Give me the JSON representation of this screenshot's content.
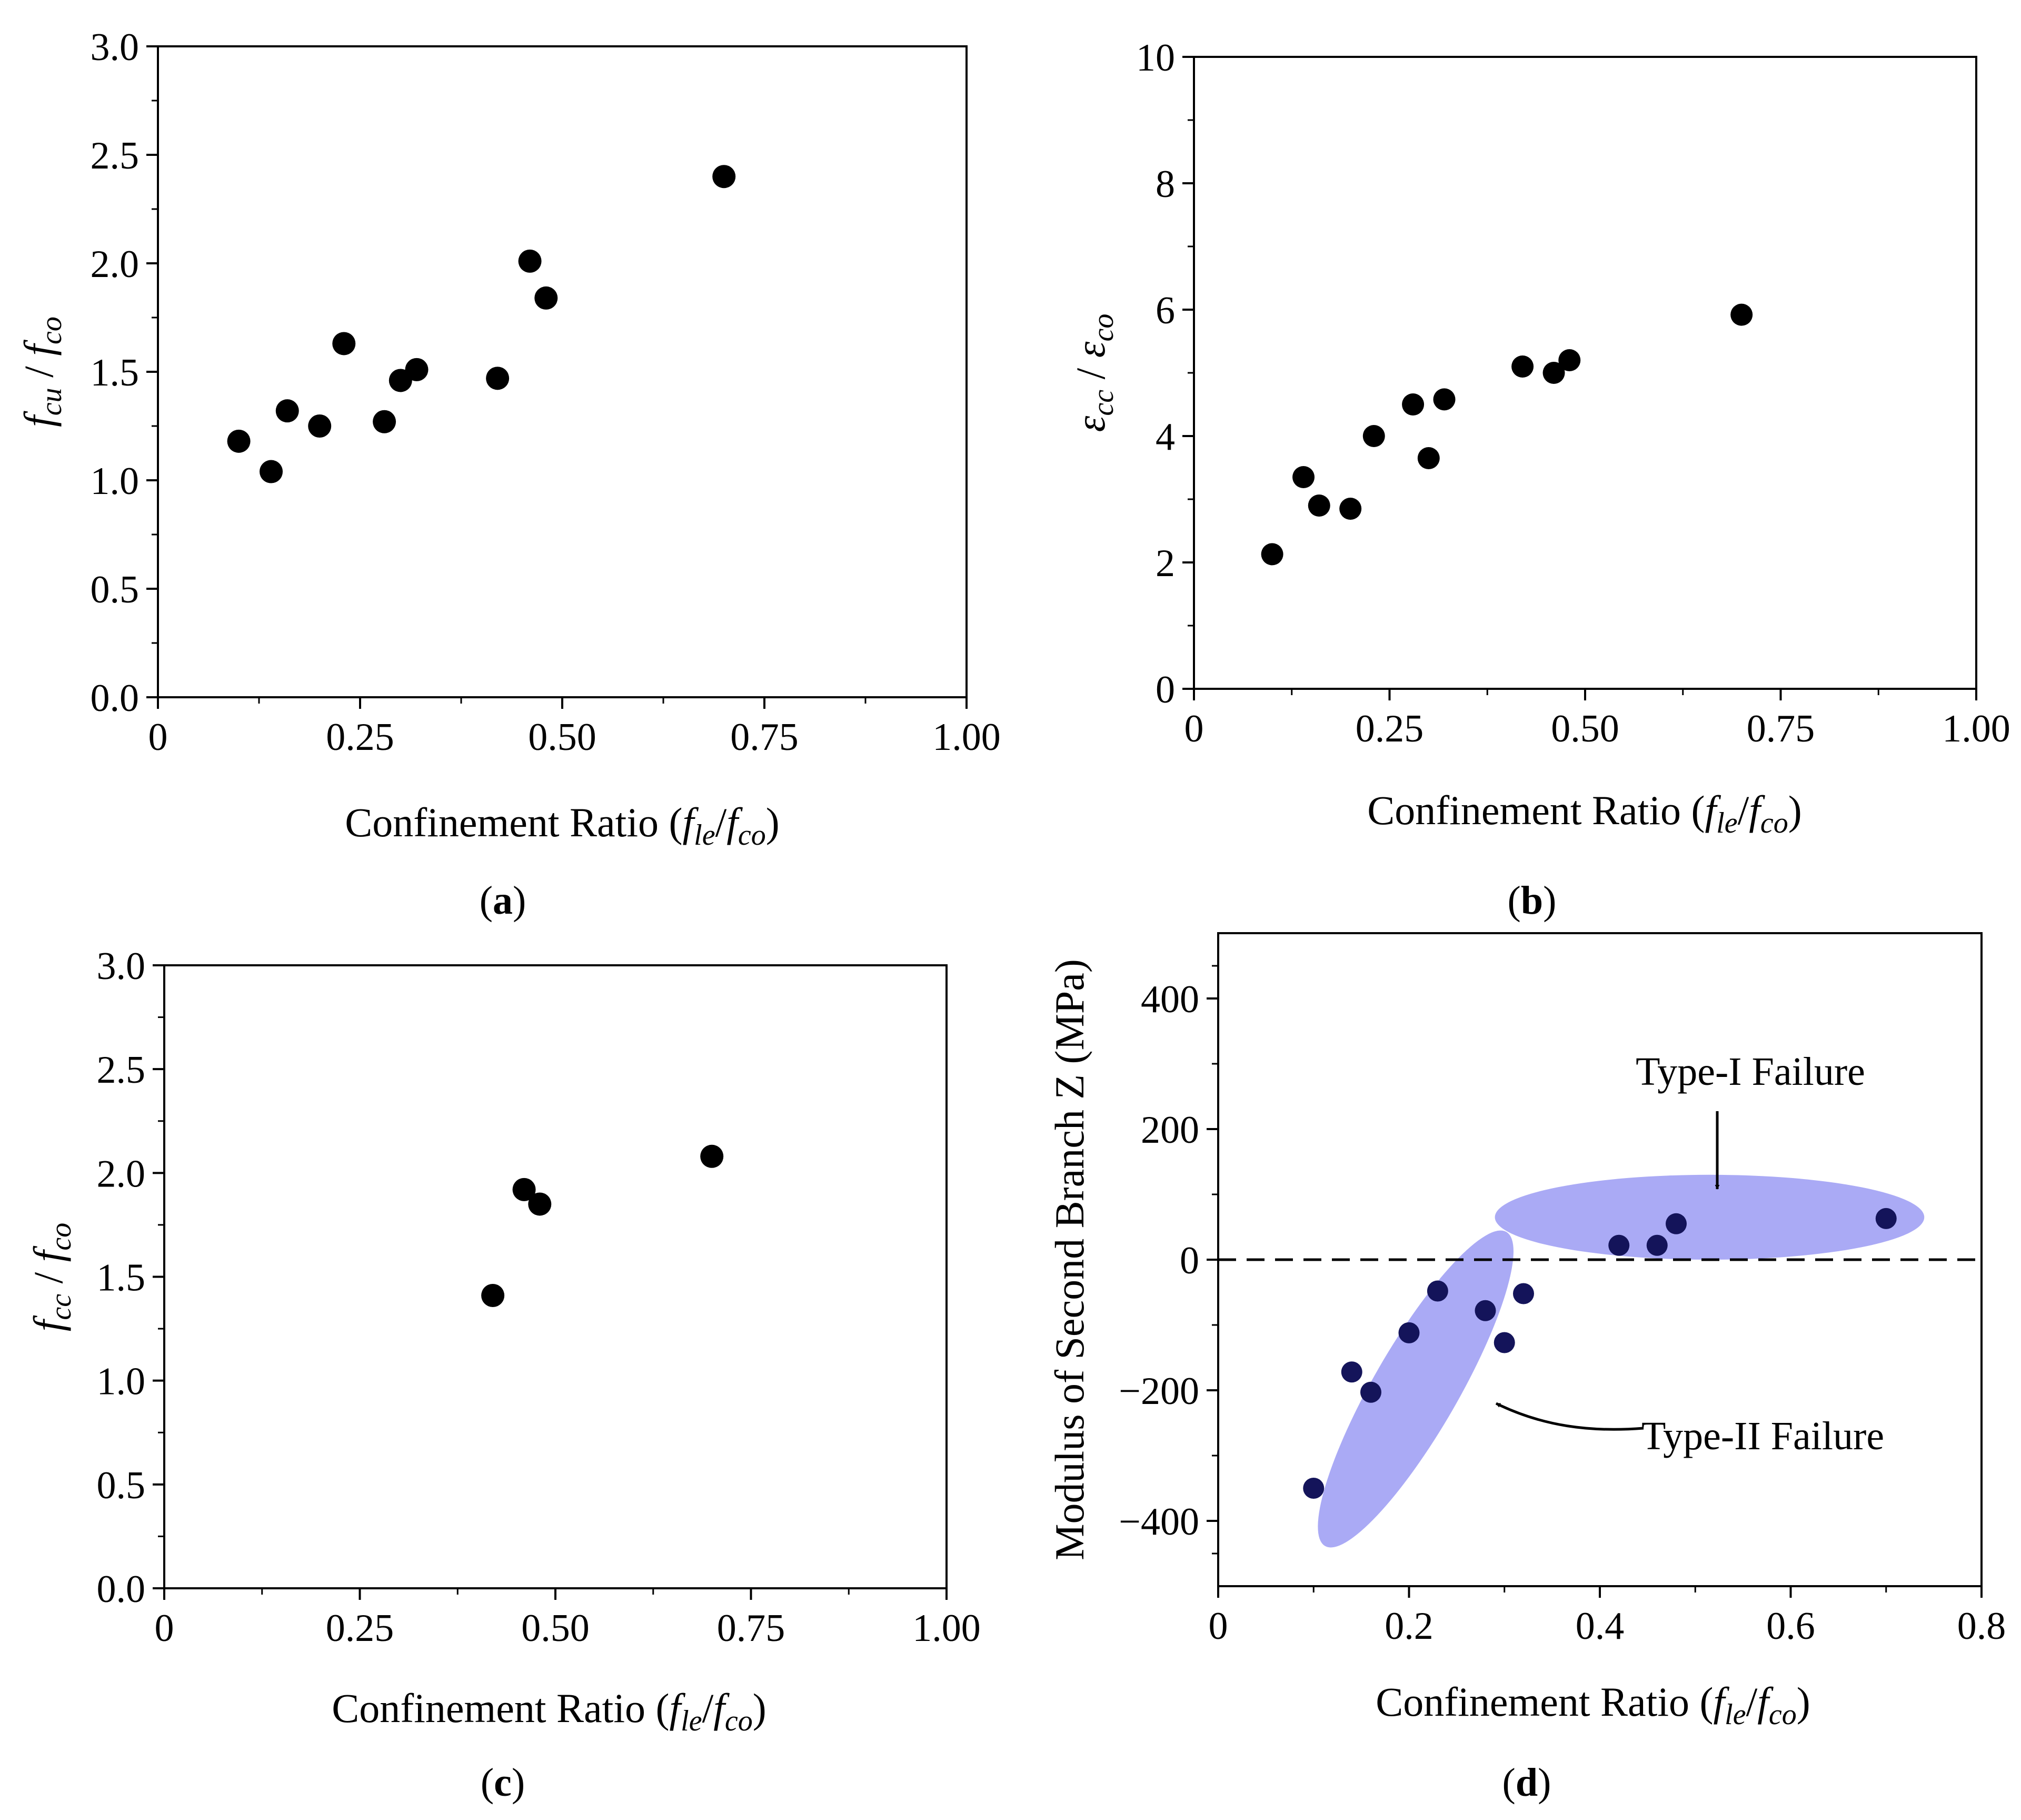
{
  "chart_data": [
    {
      "id": "a",
      "type": "scatter",
      "panel_label": "a",
      "xlabel": {
        "prefix": "Confinement Ratio (",
        "f1": "f",
        "s1": "le",
        "slash": "/",
        "f2": "f",
        "s2": "co",
        "suffix": ")"
      },
      "ylabel": {
        "f1": "f",
        "s1": "cu",
        "slash": " / ",
        "f2": "f",
        "s2": "co"
      },
      "xlim": [
        0,
        1.0
      ],
      "ylim": [
        0,
        3.0
      ],
      "xticks": [
        0,
        0.25,
        0.5,
        0.75,
        1.0
      ],
      "xtick_labels": [
        "0",
        "0.25",
        "0.50",
        "0.75",
        "1.00"
      ],
      "yticks": [
        0,
        0.5,
        1.0,
        1.5,
        2.0,
        2.5,
        3.0
      ],
      "ytick_labels": [
        "0.0",
        "0.5",
        "1.0",
        "1.5",
        "2.0",
        "2.5",
        "3.0"
      ],
      "points": [
        [
          0.1,
          1.18
        ],
        [
          0.14,
          1.04
        ],
        [
          0.16,
          1.32
        ],
        [
          0.2,
          1.25
        ],
        [
          0.23,
          1.63
        ],
        [
          0.28,
          1.27
        ],
        [
          0.3,
          1.46
        ],
        [
          0.32,
          1.51
        ],
        [
          0.42,
          1.47
        ],
        [
          0.46,
          2.01
        ],
        [
          0.48,
          1.84
        ],
        [
          0.7,
          2.4
        ]
      ]
    },
    {
      "id": "b",
      "type": "scatter",
      "panel_label": "b",
      "xlabel": {
        "prefix": "Confinement Ratio (",
        "f1": "f",
        "s1": "le",
        "slash": "/",
        "f2": "f",
        "s2": "co",
        "suffix": ")"
      },
      "ylabel": {
        "f1": "ε",
        "s1": "cc",
        "slash": " / ",
        "f2": "ε",
        "s2": "co"
      },
      "xlim": [
        0,
        1.0
      ],
      "ylim": [
        0,
        10
      ],
      "xticks": [
        0,
        0.25,
        0.5,
        0.75,
        1.0
      ],
      "xtick_labels": [
        "0",
        "0.25",
        "0.50",
        "0.75",
        "1.00"
      ],
      "yticks": [
        0,
        2,
        4,
        6,
        8,
        10
      ],
      "ytick_labels": [
        "0",
        "2",
        "4",
        "6",
        "8",
        "10"
      ],
      "points": [
        [
          0.1,
          2.13
        ],
        [
          0.14,
          3.35
        ],
        [
          0.16,
          2.9
        ],
        [
          0.2,
          2.85
        ],
        [
          0.23,
          4.0
        ],
        [
          0.28,
          4.5
        ],
        [
          0.3,
          3.65
        ],
        [
          0.32,
          4.58
        ],
        [
          0.42,
          5.1
        ],
        [
          0.46,
          5.0
        ],
        [
          0.48,
          5.2
        ],
        [
          0.7,
          5.92
        ]
      ]
    },
    {
      "id": "c",
      "type": "scatter",
      "panel_label": "c",
      "xlabel": {
        "prefix": "Confinement Ratio (",
        "f1": "f",
        "s1": "le",
        "slash": "/",
        "f2": "f",
        "s2": "co",
        "suffix": ")"
      },
      "ylabel": {
        "f1": "f",
        "s1": "cc",
        "slash": " / ",
        "f2": "f",
        "s2": "co"
      },
      "xlim": [
        0,
        1.0
      ],
      "ylim": [
        0,
        3.0
      ],
      "xticks": [
        0,
        0.25,
        0.5,
        0.75,
        1.0
      ],
      "xtick_labels": [
        "0",
        "0.25",
        "0.50",
        "0.75",
        "1.00"
      ],
      "yticks": [
        0,
        0.5,
        1.0,
        1.5,
        2.0,
        2.5,
        3.0
      ],
      "ytick_labels": [
        "0.0",
        "0.5",
        "1.0",
        "1.5",
        "2.0",
        "2.5",
        "3.0"
      ],
      "points": [
        [
          0.42,
          1.41
        ],
        [
          0.46,
          1.92
        ],
        [
          0.48,
          1.85
        ],
        [
          0.7,
          2.08
        ]
      ]
    },
    {
      "id": "d",
      "type": "scatter",
      "panel_label": "d",
      "xlabel": {
        "prefix": "Confinement Ratio (",
        "f1": "f",
        "s1": "le",
        "slash": "/",
        "f2": "f",
        "s2": "co",
        "suffix": ")"
      },
      "ylabel_text": "Modulus of Second Branch Z (MPa)",
      "xlim": [
        0,
        0.8
      ],
      "ylim": [
        -500,
        500
      ],
      "xticks": [
        0,
        0.2,
        0.4,
        0.6,
        0.8
      ],
      "xtick_labels": [
        "0",
        "0.2",
        "0.4",
        "0.6",
        "0.8"
      ],
      "yticks": [
        -400,
        -200,
        0,
        200,
        400
      ],
      "ytick_labels": [
        "−400",
        "−200",
        "0",
        "200",
        "400"
      ],
      "zero_line": true,
      "points": [
        [
          0.1,
          -350
        ],
        [
          0.14,
          -172
        ],
        [
          0.16,
          -203
        ],
        [
          0.2,
          -112
        ],
        [
          0.23,
          -48
        ],
        [
          0.28,
          -78
        ],
        [
          0.3,
          -127
        ],
        [
          0.32,
          -52
        ],
        [
          0.42,
          22
        ],
        [
          0.46,
          22
        ],
        [
          0.48,
          55
        ],
        [
          0.7,
          63
        ]
      ],
      "regions": [
        {
          "label": "Type-I Failure",
          "members": "x ≥ 0.42",
          "color": "#aaaaf5",
          "ellipse": {
            "cx": 0.515,
            "cy": 65,
            "rx": 0.225,
            "ry": 65,
            "angle_deg": 0
          }
        },
        {
          "label": "Type-II Failure",
          "members": "x ≤ 0.32",
          "color": "#aaaaf5",
          "ellipse": {
            "cx": 0.207,
            "cy": -198,
            "rx": 0.19,
            "ry": 65,
            "angle_deg": -60
          }
        }
      ],
      "marker_color": "#14145a"
    }
  ]
}
